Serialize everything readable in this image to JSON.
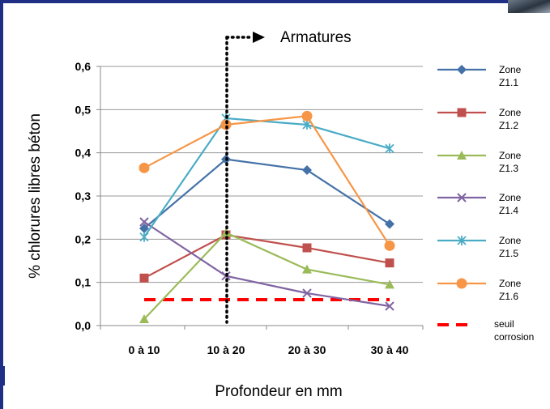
{
  "chart_data": {
    "type": "line",
    "title": "",
    "xlabel": "Profondeur en mm",
    "ylabel": "% chlorures libres  béton",
    "categories": [
      "0 à 10",
      "10 à 20",
      "20 à 30",
      "30 à 40"
    ],
    "ylim": [
      0,
      0.6
    ],
    "yticks": [
      "0,0",
      "0,1",
      "0,2",
      "0,3",
      "0,4",
      "0,5",
      "0,6"
    ],
    "grid": "horizontal",
    "legend_position": "right",
    "annotation": "Armatures",
    "series": [
      {
        "name": "Zone Z1.1",
        "label_lines": [
          "Zone",
          "Z1.1"
        ],
        "color": "#4472a8",
        "marker": "diamond",
        "values": [
          0.225,
          0.385,
          0.36,
          0.235
        ]
      },
      {
        "name": "Zone Z1.2",
        "label_lines": [
          "Zone",
          "Z1.2"
        ],
        "color": "#c0504d",
        "marker": "square",
        "values": [
          0.11,
          0.21,
          0.18,
          0.145
        ]
      },
      {
        "name": "Zone Z1.3",
        "label_lines": [
          "Zone",
          "Z1.3"
        ],
        "color": "#9bbb59",
        "marker": "triangle",
        "values": [
          0.015,
          0.215,
          0.13,
          0.095
        ]
      },
      {
        "name": "Zone Z1.4",
        "label_lines": [
          "Zone",
          "Z1.4"
        ],
        "color": "#8064a2",
        "marker": "x",
        "values": [
          0.24,
          0.115,
          0.075,
          0.045
        ]
      },
      {
        "name": "Zone Z1.5",
        "label_lines": [
          "Zone",
          "Z1.5"
        ],
        "color": "#4bacc6",
        "marker": "star",
        "values": [
          0.205,
          0.48,
          0.465,
          0.41
        ]
      },
      {
        "name": "Zone Z1.6",
        "label_lines": [
          "Zone",
          "Z1.6"
        ],
        "color": "#f79646",
        "marker": "circle",
        "values": [
          0.365,
          0.465,
          0.485,
          0.185
        ]
      }
    ],
    "threshold": {
      "name": "seuil corrosion",
      "label_lines": [
        "seuil",
        "corrosion"
      ],
      "value": 0.06,
      "color": "#ff0000",
      "style": "dashed"
    }
  }
}
